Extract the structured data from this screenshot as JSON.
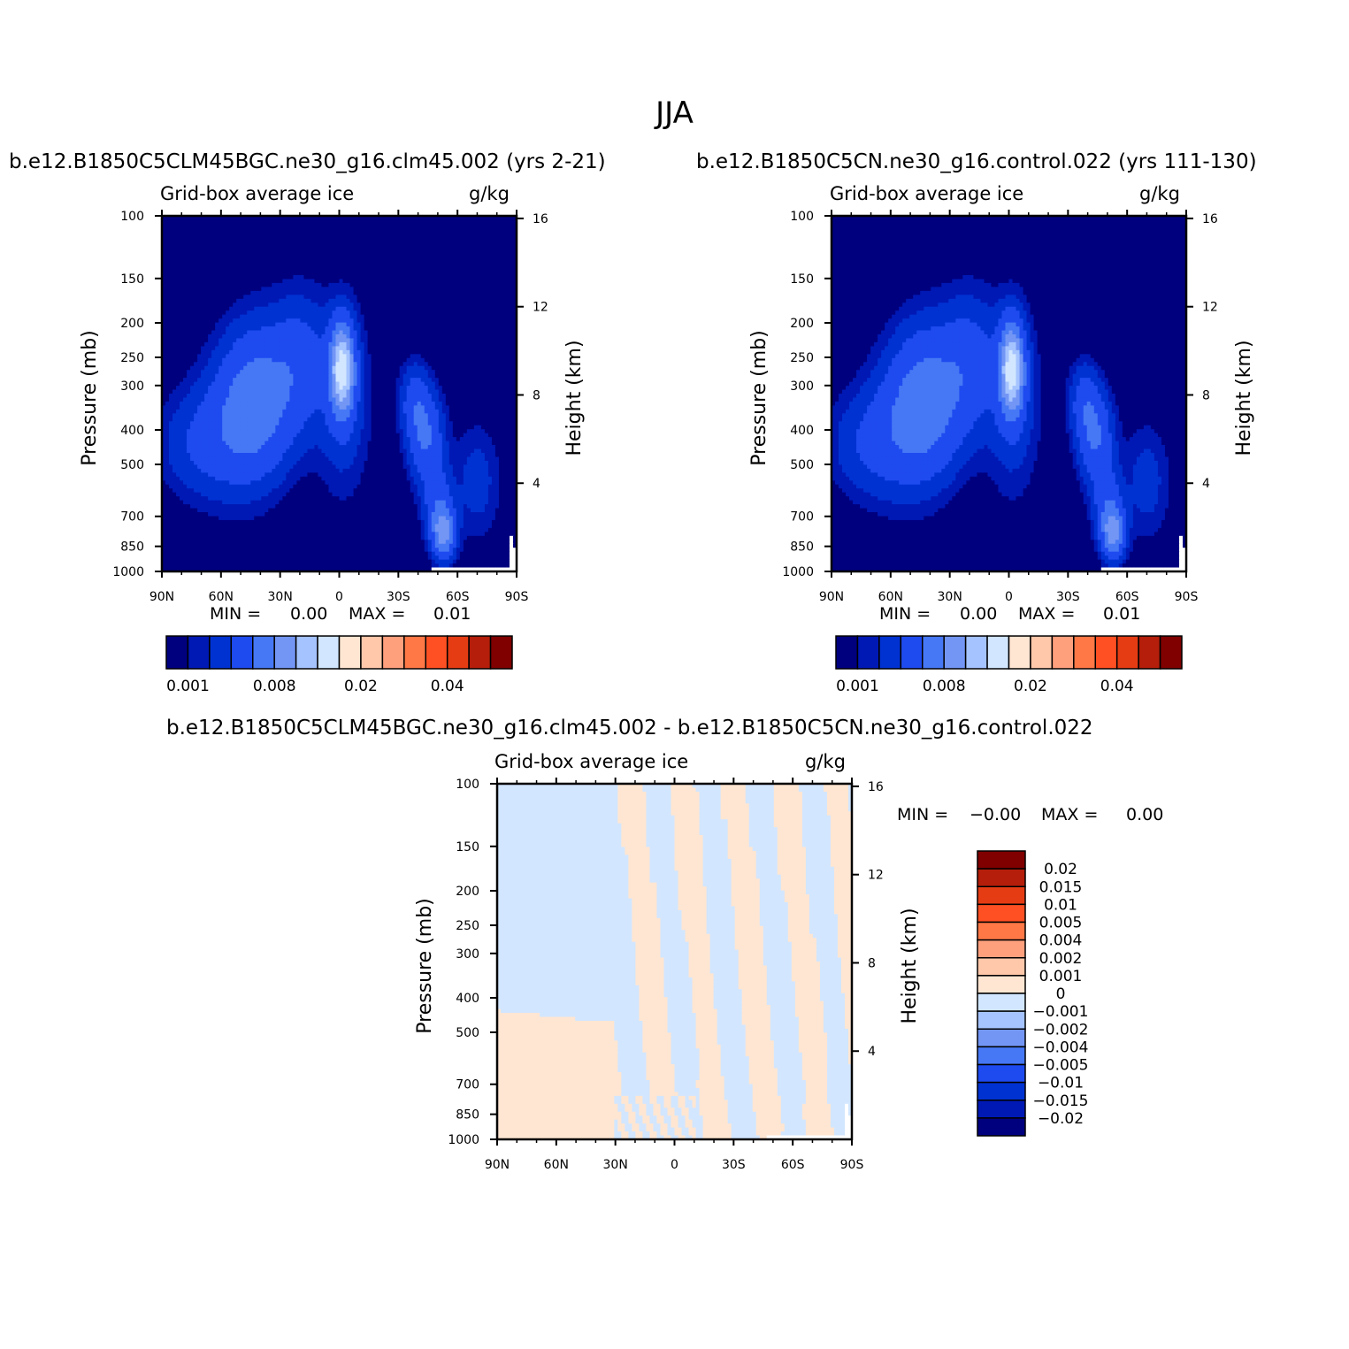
{
  "figure": {
    "title": "JJA",
    "colors": {
      "abs_palette": [
        "#00007f",
        "#0019b4",
        "#0032d2",
        "#1e4bf0",
        "#4678f5",
        "#7396f5",
        "#a5c3ff",
        "#d2e6ff",
        "#ffe6d2",
        "#ffc8aa",
        "#ffa07d",
        "#ff7846",
        "#ff5023",
        "#e63c14",
        "#b41e0a",
        "#800000"
      ],
      "diff_palette": [
        "#00007f",
        "#0019b4",
        "#0032d2",
        "#1e4bf0",
        "#4678f5",
        "#7396f5",
        "#a5c3ff",
        "#d2e6ff",
        "#ffe6d2",
        "#ffc8aa",
        "#ffa07d",
        "#ff7846",
        "#ff5023",
        "#e63c14",
        "#b41e0a",
        "#800000"
      ],
      "missing": "#ffffff"
    }
  },
  "chart_data": [
    {
      "type": "heatmap",
      "title": "b.e12.B1850C5CLM45BGC.ne30_g16.clm45.002 (yrs 2-21)",
      "variable": "Grid-box average ice",
      "units": "g/kg",
      "xlabel": "",
      "ylabel": "Pressure (mb)",
      "ylabel_right": "Height (km)",
      "x_ticks": [
        "90N",
        "60N",
        "30N",
        "0",
        "30S",
        "60S",
        "90S"
      ],
      "x_range": [
        90,
        -90
      ],
      "y_ticks": [
        100,
        150,
        200,
        250,
        300,
        400,
        500,
        700,
        850,
        1000
      ],
      "y_range": [
        100,
        1000
      ],
      "y_scale": "log",
      "height_ticks": [
        16,
        12,
        8,
        4
      ],
      "min_label": "MIN =",
      "min_value": "0.00",
      "max_label": "MAX =",
      "max_value": "0.01",
      "colorbar": {
        "orientation": "horizontal",
        "labels": [
          "0.001",
          "0.008",
          "0.02",
          "0.04"
        ]
      },
      "features": [
        {
          "lat": -1.5,
          "p": 270,
          "peak": 0.011,
          "note": "tropical upper-troposphere maximum"
        },
        {
          "lat": 42,
          "p": 330,
          "peak": 0.006,
          "note": "NH mid-latitude maximum"
        },
        {
          "lat": -53,
          "p": 780,
          "peak": 0.007,
          "note": "SH low-level maximum"
        },
        {
          "lat": -44,
          "p": 420,
          "peak": 0.004,
          "note": "SH mid-level maximum"
        }
      ]
    },
    {
      "type": "heatmap",
      "title": "b.e12.B1850C5CN.ne30_g16.control.022 (yrs 111-130)",
      "variable": "Grid-box average ice",
      "units": "g/kg",
      "xlabel": "",
      "ylabel": "Pressure (mb)",
      "ylabel_right": "Height (km)",
      "x_ticks": [
        "90N",
        "60N",
        "30N",
        "0",
        "30S",
        "60S",
        "90S"
      ],
      "x_range": [
        90,
        -90
      ],
      "y_ticks": [
        100,
        150,
        200,
        250,
        300,
        400,
        500,
        700,
        850,
        1000
      ],
      "y_range": [
        100,
        1000
      ],
      "y_scale": "log",
      "height_ticks": [
        16,
        12,
        8,
        4
      ],
      "min_label": "MIN =",
      "min_value": "0.00",
      "max_label": "MAX =",
      "max_value": "0.01",
      "colorbar": {
        "orientation": "horizontal",
        "labels": [
          "0.001",
          "0.008",
          "0.02",
          "0.04"
        ]
      },
      "features": [
        {
          "lat": -1.5,
          "p": 270,
          "peak": 0.011,
          "note": "tropical upper-troposphere maximum"
        },
        {
          "lat": 42,
          "p": 330,
          "peak": 0.006,
          "note": "NH mid-latitude maximum"
        },
        {
          "lat": -53,
          "p": 780,
          "peak": 0.007,
          "note": "SH low-level maximum"
        },
        {
          "lat": -44,
          "p": 420,
          "peak": 0.004,
          "note": "SH mid-level maximum"
        }
      ]
    },
    {
      "type": "heatmap",
      "title": "b.e12.B1850C5CLM45BGC.ne30_g16.clm45.002 - b.e12.B1850C5CN.ne30_g16.control.022",
      "variable": "Grid-box average ice",
      "units": "g/kg",
      "xlabel": "",
      "ylabel": "Pressure (mb)",
      "ylabel_right": "Height (km)",
      "x_ticks": [
        "90N",
        "60N",
        "30N",
        "0",
        "30S",
        "60S",
        "90S"
      ],
      "x_range": [
        90,
        -90
      ],
      "y_ticks": [
        100,
        150,
        200,
        250,
        300,
        400,
        500,
        700,
        850,
        1000
      ],
      "y_range": [
        100,
        1000
      ],
      "y_scale": "log",
      "height_ticks": [
        16,
        12,
        8,
        4
      ],
      "min_label": "MIN =",
      "min_value": "-0.00",
      "max_label": "MAX =",
      "max_value": "0.00",
      "colorbar": {
        "orientation": "vertical",
        "labels": [
          "0.02",
          "0.015",
          "0.01",
          "0.005",
          "0.004",
          "0.002",
          "0.001",
          "0",
          "-0.001",
          "-0.002",
          "-0.004",
          "-0.005",
          "-0.01",
          "-0.015",
          "-0.02"
        ]
      },
      "features": [
        {
          "region": "lower troposphere, 90N-30N",
          "sign": "positive",
          "magnitude": "0 to 0.001"
        },
        {
          "region": "upper troposphere, 90N-30N",
          "sign": "negative",
          "magnitude": "-0.001 to 0"
        },
        {
          "region": "tropics and SH, mixed bands",
          "sign": "mixed",
          "magnitude": "|d| < 0.001"
        }
      ]
    }
  ]
}
